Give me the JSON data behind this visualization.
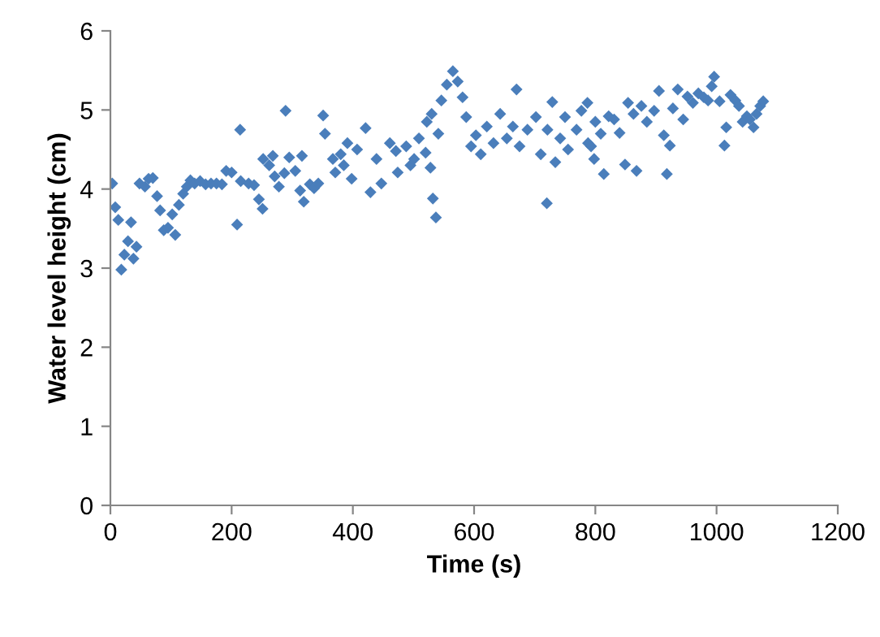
{
  "chart_data": {
    "type": "scatter",
    "xlabel": "Time (s)",
    "ylabel": "Water level height (cm)",
    "xlim": [
      0,
      1200
    ],
    "xticks": [
      0,
      200,
      400,
      600,
      800,
      1000,
      1200
    ],
    "ylim": [
      0,
      6
    ],
    "yticks": [
      0,
      1,
      2,
      3,
      4,
      5,
      6
    ],
    "grid": false,
    "marker": "diamond",
    "series": [
      {
        "color": "#4a7ebb",
        "x": [
          3,
          8,
          13,
          18,
          23,
          29,
          34,
          38,
          43,
          48,
          57,
          63,
          70,
          77,
          82,
          88,
          95,
          102,
          107,
          113,
          120,
          126,
          132,
          139,
          148,
          157,
          166,
          175,
          184,
          191,
          200,
          209,
          214,
          215,
          228,
          237,
          245,
          251,
          252,
          262,
          268,
          271,
          278,
          287,
          289,
          295,
          305,
          313,
          316,
          319,
          329,
          336,
          343,
          351,
          354,
          367,
          371,
          380,
          385,
          391,
          398,
          407,
          421,
          429,
          439,
          447,
          461,
          471,
          474,
          488,
          495,
          501,
          509,
          520,
          522,
          528,
          530,
          532,
          537,
          541,
          546,
          555,
          565,
          573,
          581,
          587,
          595,
          603,
          611,
          621,
          632,
          643,
          654,
          664,
          670,
          675,
          688,
          702,
          710,
          720,
          721,
          729,
          734,
          742,
          750,
          755,
          769,
          777,
          787,
          788,
          793,
          798,
          800,
          809,
          814,
          822,
          831,
          840,
          849,
          854,
          863,
          868,
          876,
          885,
          897,
          905,
          913,
          918,
          923,
          928,
          936,
          945,
          952,
          961,
          970,
          979,
          986,
          992,
          996,
          1005,
          1013,
          1016,
          1023,
          1031,
          1037,
          1043,
          1050,
          1055,
          1061,
          1066,
          1072,
          1077
        ],
        "values": [
          4.07,
          3.77,
          3.61,
          2.98,
          3.17,
          3.34,
          3.58,
          3.12,
          3.27,
          4.07,
          4.03,
          4.13,
          4.14,
          3.91,
          3.73,
          3.48,
          3.51,
          3.68,
          3.42,
          3.8,
          3.94,
          4.03,
          4.11,
          4.07,
          4.1,
          4.06,
          4.07,
          4.07,
          4.06,
          4.23,
          4.21,
          3.55,
          4.75,
          4.1,
          4.07,
          4.05,
          3.87,
          3.75,
          4.38,
          4.3,
          4.42,
          4.16,
          4.03,
          4.2,
          4.99,
          4.4,
          4.23,
          3.98,
          4.42,
          3.84,
          4.06,
          4.01,
          4.07,
          4.93,
          4.7,
          4.38,
          4.21,
          4.44,
          4.3,
          4.58,
          4.13,
          4.5,
          4.77,
          3.96,
          4.38,
          4.07,
          4.58,
          4.48,
          4.21,
          4.54,
          4.3,
          4.38,
          4.64,
          4.46,
          4.85,
          4.27,
          4.95,
          3.88,
          3.64,
          4.7,
          5.12,
          5.32,
          5.49,
          5.36,
          5.16,
          4.91,
          4.54,
          4.68,
          4.44,
          4.79,
          4.58,
          4.95,
          4.64,
          4.79,
          5.26,
          4.54,
          4.75,
          4.91,
          4.44,
          3.82,
          4.75,
          5.1,
          4.34,
          4.64,
          4.91,
          4.5,
          4.75,
          4.99,
          5.09,
          4.58,
          4.54,
          4.38,
          4.85,
          4.7,
          4.19,
          4.92,
          4.88,
          4.71,
          4.31,
          5.09,
          4.95,
          4.23,
          5.05,
          4.85,
          4.99,
          5.24,
          4.68,
          4.19,
          4.55,
          5.02,
          5.26,
          4.88,
          5.17,
          5.09,
          5.21,
          5.16,
          5.12,
          5.3,
          5.42,
          5.11,
          4.55,
          4.78,
          5.19,
          5.12,
          5.05,
          4.85,
          4.92,
          4.88,
          4.78,
          4.95,
          5.05,
          5.11
        ]
      }
    ]
  }
}
